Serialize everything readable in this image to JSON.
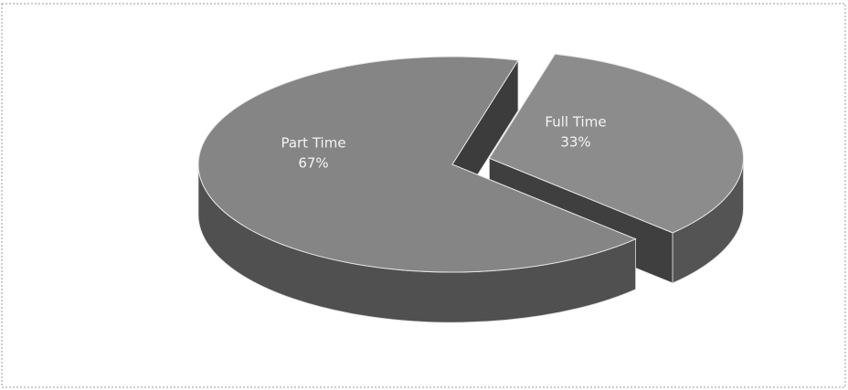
{
  "chart_data": {
    "type": "pie3d",
    "categories": [
      "Full Time",
      "Part Time"
    ],
    "values": [
      33,
      67
    ],
    "value_labels": [
      "33%",
      "67%"
    ],
    "colors": [
      "#8c8c8c",
      "#858585"
    ],
    "explode": [
      1,
      0
    ]
  }
}
